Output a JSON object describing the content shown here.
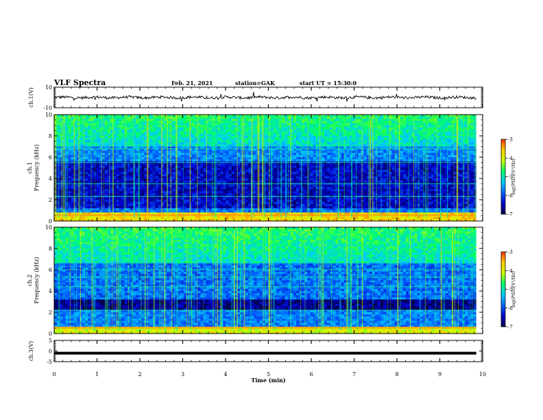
{
  "header": {
    "title": "VLF Spectra",
    "date": "Feb. 21, 2021",
    "station": "station=GAK",
    "start_ut": "start UT = 15:30:0"
  },
  "chart_data": [
    {
      "type": "line",
      "panel": "waveform-ch1",
      "ylabel": "ch.1(V)",
      "ylim": [
        -10,
        10
      ],
      "yticks": [
        "10",
        "-10"
      ],
      "xlim": [
        0,
        10
      ],
      "series": [
        {
          "color": "#000000"
        }
      ]
    },
    {
      "type": "heatmap",
      "panel": "spectrogram-ch1",
      "ylabel": "ch.1 Frequency (kHz)",
      "ylim": [
        0,
        10
      ],
      "yticks": [
        "0",
        "2",
        "4",
        "6",
        "8",
        "10"
      ],
      "xlim": [
        0,
        10
      ],
      "colorbar": {
        "label": "log(PSD)(V²/Hz)",
        "range": [
          -7,
          -3
        ],
        "ticks": [
          "-3",
          "-4",
          "-5",
          "-6",
          "-7"
        ]
      }
    },
    {
      "type": "heatmap",
      "panel": "spectrogram-ch2",
      "ylabel": "ch.2 Frequency (kHz)",
      "ylim": [
        0,
        10
      ],
      "yticks": [
        "0",
        "2",
        "4",
        "6",
        "8",
        "10"
      ],
      "xlim": [
        0,
        10
      ],
      "colorbar": {
        "label": "log(PSD)(V²/Hz)",
        "range": [
          -7,
          -3
        ],
        "ticks": [
          "-3",
          "-4",
          "-5",
          "-6",
          "-7"
        ]
      }
    },
    {
      "type": "line",
      "panel": "waveform-ch3",
      "ylabel": "ch.3(V)",
      "ylim": [
        -5,
        5
      ],
      "yticks": [
        "5",
        "0",
        "-5"
      ],
      "xlim": [
        0,
        10
      ],
      "series": [
        {
          "color": "#000000",
          "value": -1
        }
      ]
    }
  ],
  "xaxis": {
    "label": "Time (min)",
    "ticks": [
      "0",
      "1",
      "2",
      "3",
      "4",
      "5",
      "6",
      "7",
      "8",
      "9",
      "10"
    ]
  },
  "colors": {
    "background": "#ffffff",
    "axis": "#000000",
    "colormap": [
      "#000044",
      "#0000cc",
      "#0066ff",
      "#00ccff",
      "#00ff66",
      "#ccff00",
      "#ffcc00",
      "#ff3300"
    ]
  }
}
